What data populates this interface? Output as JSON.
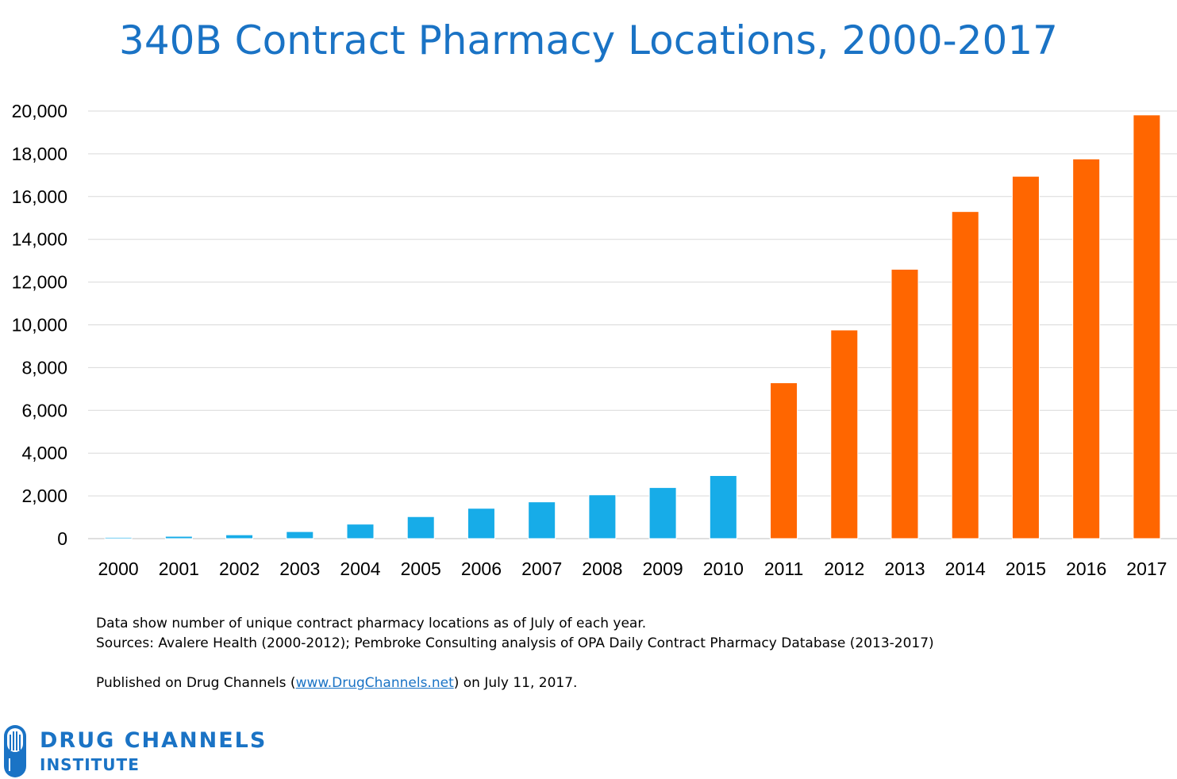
{
  "chart_data": {
    "type": "bar",
    "title": "340B Contract Pharmacy Locations, 2000-2017",
    "categories": [
      "2000",
      "2001",
      "2002",
      "2003",
      "2004",
      "2005",
      "2006",
      "2007",
      "2008",
      "2009",
      "2010",
      "2011",
      "2012",
      "2013",
      "2014",
      "2015",
      "2016",
      "2017"
    ],
    "values": [
      60,
      110,
      180,
      330,
      680,
      1030,
      1420,
      1720,
      2050,
      2390,
      2950,
      7290,
      9760,
      12600,
      15300,
      16950,
      17760,
      19820
    ],
    "bar_colors": [
      "#17ace8",
      "#17ace8",
      "#17ace8",
      "#17ace8",
      "#17ace8",
      "#17ace8",
      "#17ace8",
      "#17ace8",
      "#17ace8",
      "#17ace8",
      "#17ace8",
      "#ff6600",
      "#ff6600",
      "#ff6600",
      "#ff6600",
      "#ff6600",
      "#ff6600",
      "#ff6600"
    ],
    "yticks": [
      0,
      2000,
      4000,
      6000,
      8000,
      10000,
      12000,
      14000,
      16000,
      18000,
      20000
    ],
    "ytick_labels": [
      "0",
      "2,000",
      "4,000",
      "6,000",
      "8,000",
      "10,000",
      "12,000",
      "14,000",
      "16,000",
      "18,000",
      "20,000"
    ],
    "ylim": [
      0,
      20000
    ],
    "grid": true,
    "legend": "none",
    "xlabel": "",
    "ylabel": ""
  },
  "notes": {
    "line1": "Data show number of unique contract pharmacy locations as of July of each year.",
    "line2": "Sources: Avalere Health (2000-2012); Pembroke Consulting  analysis of OPA Daily Contract Pharmacy Database (2013-2017)",
    "published_prefix": "Published on Drug Channels (",
    "published_link": "www.DrugChannels.net",
    "published_suffix": ") on July 11, 2017."
  },
  "logo": {
    "line1": "DRUG CHANNELS",
    "line2": "INSTITUTE",
    "color": "#1a73c5"
  }
}
